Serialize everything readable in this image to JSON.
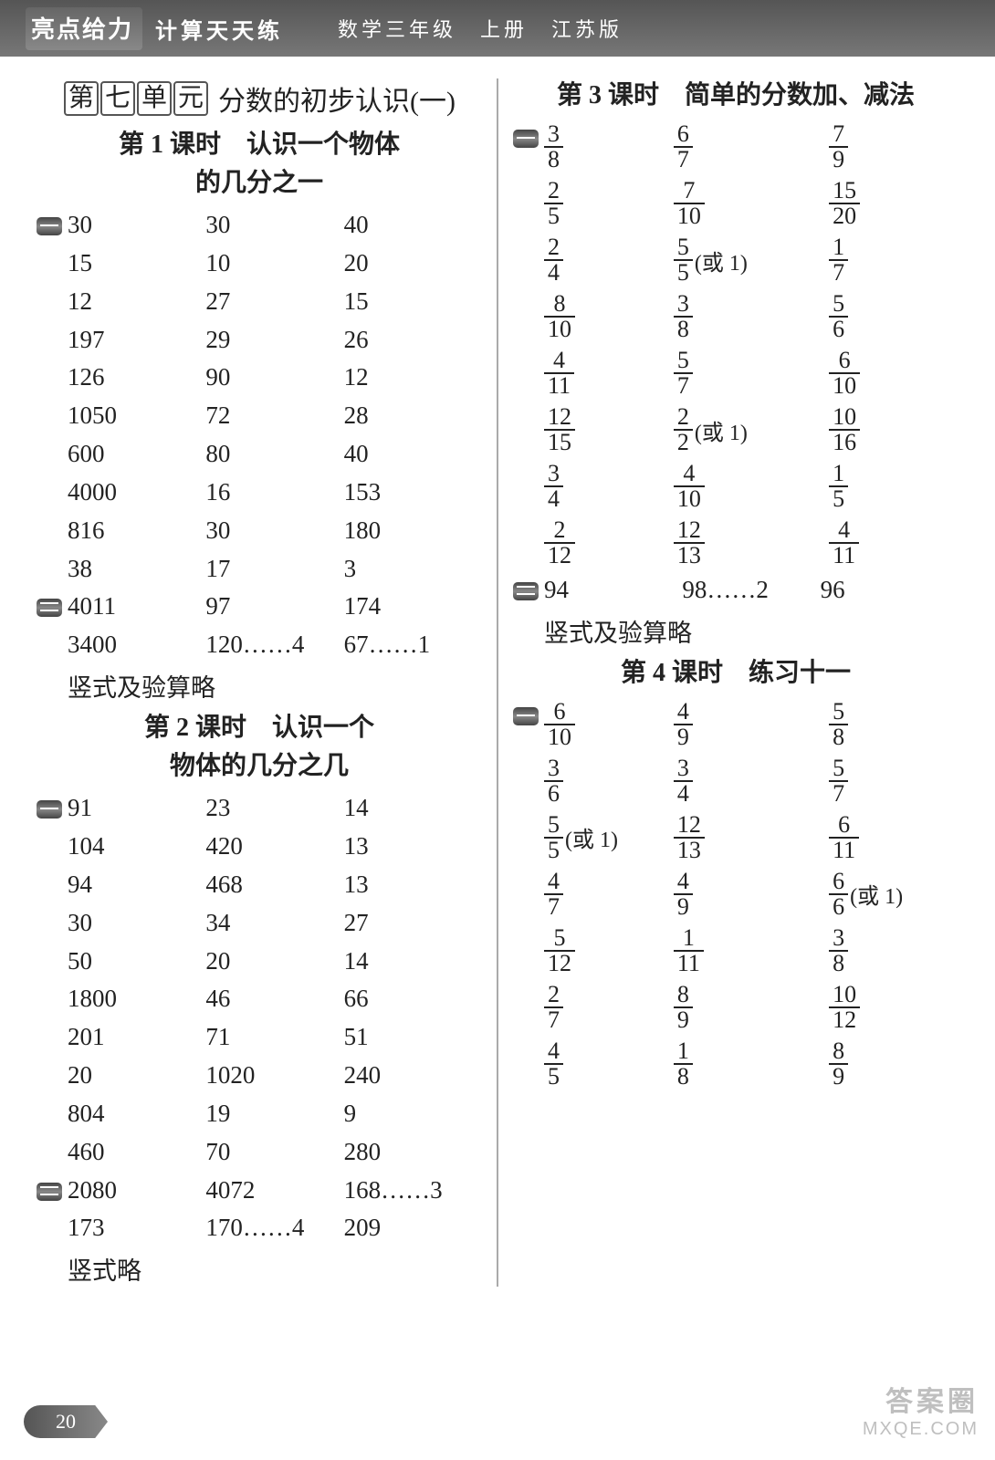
{
  "banner": {
    "brand": "亮点给力",
    "series": "计算天天练",
    "book": "数学三年级　上册　江苏版"
  },
  "left": {
    "unit_boxes": [
      "第",
      "七",
      "单",
      "元"
    ],
    "unit_title": "分数的初步认识(一)",
    "lesson1": {
      "t1": "第 1 课时　认识一个物体",
      "t2": "的几分之一"
    },
    "sec1_rows": [
      [
        "30",
        "30",
        "40"
      ],
      [
        "15",
        "10",
        "20"
      ],
      [
        "12",
        "27",
        "15"
      ],
      [
        "197",
        "29",
        "26"
      ],
      [
        "126",
        "90",
        "12"
      ],
      [
        "1050",
        "72",
        "28"
      ],
      [
        "600",
        "80",
        "40"
      ],
      [
        "4000",
        "16",
        "153"
      ],
      [
        "816",
        "30",
        "180"
      ],
      [
        "38",
        "17",
        "3"
      ]
    ],
    "sec2_rows": [
      [
        "4011",
        "97",
        "174"
      ],
      [
        "3400",
        "120……4",
        "67……1"
      ]
    ],
    "sec2_note": "竖式及验算略",
    "lesson2": {
      "t1": "第 2 课时　认识一个",
      "t2": "物体的几分之几"
    },
    "sec3_rows": [
      [
        "91",
        "23",
        "14"
      ],
      [
        "104",
        "420",
        "13"
      ],
      [
        "94",
        "468",
        "13"
      ],
      [
        "30",
        "34",
        "27"
      ],
      [
        "50",
        "20",
        "14"
      ],
      [
        "1800",
        "46",
        "66"
      ],
      [
        "201",
        "71",
        "51"
      ],
      [
        "20",
        "1020",
        "240"
      ],
      [
        "804",
        "19",
        "9"
      ],
      [
        "460",
        "70",
        "280"
      ]
    ],
    "sec4_rows": [
      [
        "2080",
        "4072",
        "168……3"
      ],
      [
        "173",
        "170……4",
        "209"
      ]
    ],
    "sec4_note": "竖式略"
  },
  "right": {
    "lesson3": "第 3 课时　简单的分数加、减法",
    "sec5_rows": [
      [
        {
          "n": "3",
          "d": "8"
        },
        {
          "n": "6",
          "d": "7"
        },
        {
          "n": "7",
          "d": "9"
        }
      ],
      [
        {
          "n": "2",
          "d": "5"
        },
        {
          "n": "7",
          "d": "10"
        },
        {
          "n": "15",
          "d": "20"
        }
      ],
      [
        {
          "n": "2",
          "d": "4"
        },
        {
          "n": "5",
          "d": "5",
          "or": "(或 1)"
        },
        {
          "n": "1",
          "d": "7"
        }
      ],
      [
        {
          "n": "8",
          "d": "10"
        },
        {
          "n": "3",
          "d": "8"
        },
        {
          "n": "5",
          "d": "6"
        }
      ],
      [
        {
          "n": "4",
          "d": "11"
        },
        {
          "n": "5",
          "d": "7"
        },
        {
          "n": "6",
          "d": "10"
        }
      ],
      [
        {
          "n": "12",
          "d": "15"
        },
        {
          "n": "2",
          "d": "2",
          "or": "(或 1)"
        },
        {
          "n": "10",
          "d": "16"
        }
      ],
      [
        {
          "n": "3",
          "d": "4"
        },
        {
          "n": "4",
          "d": "10"
        },
        {
          "n": "1",
          "d": "5"
        }
      ],
      [
        {
          "n": "2",
          "d": "12"
        },
        {
          "n": "12",
          "d": "13"
        },
        {
          "n": "4",
          "d": "11"
        }
      ]
    ],
    "sec6_rows": [
      [
        "94",
        "98……2",
        "96"
      ]
    ],
    "sec6_note": "竖式及验算略",
    "lesson4": "第 4 课时　练习十一",
    "sec7_rows": [
      [
        {
          "n": "6",
          "d": "10"
        },
        {
          "n": "4",
          "d": "9"
        },
        {
          "n": "5",
          "d": "8"
        }
      ],
      [
        {
          "n": "3",
          "d": "6"
        },
        {
          "n": "3",
          "d": "4"
        },
        {
          "n": "5",
          "d": "7"
        }
      ],
      [
        {
          "n": "5",
          "d": "5",
          "or": "(或 1)"
        },
        {
          "n": "12",
          "d": "13"
        },
        {
          "n": "6",
          "d": "11"
        }
      ],
      [
        {
          "n": "4",
          "d": "7"
        },
        {
          "n": "4",
          "d": "9"
        },
        {
          "n": "6",
          "d": "6",
          "or": "(或 1)"
        }
      ],
      [
        {
          "n": "5",
          "d": "12"
        },
        {
          "n": "1",
          "d": "11"
        },
        {
          "n": "3",
          "d": "8"
        }
      ],
      [
        {
          "n": "2",
          "d": "7"
        },
        {
          "n": "8",
          "d": "9"
        },
        {
          "n": "10",
          "d": "12"
        }
      ],
      [
        {
          "n": "4",
          "d": "5"
        },
        {
          "n": "1",
          "d": "8"
        },
        {
          "n": "8",
          "d": "9"
        }
      ]
    ]
  },
  "page_number": "20",
  "watermark": {
    "line1": "答案圈",
    "line2": "MXQE.COM"
  }
}
